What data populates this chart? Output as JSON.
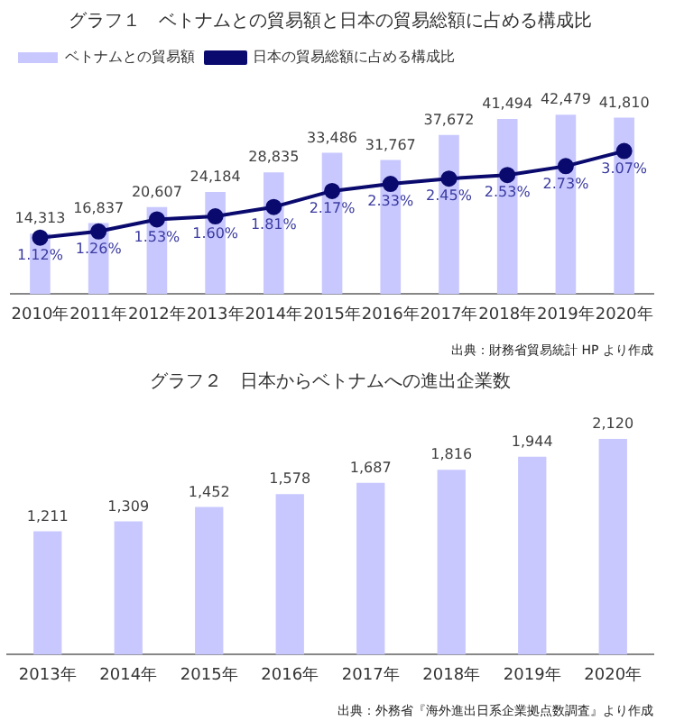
{
  "chart_data": [
    {
      "type": "bar",
      "title": "グラフ１　ベトナムとの貿易額と日本の貿易総額に占める構成比",
      "categories": [
        "2010年",
        "2011年",
        "2012年",
        "2013年",
        "2014年",
        "2015年",
        "2016年",
        "2017年",
        "2018年",
        "2019年",
        "2020年"
      ],
      "series": [
        {
          "name": "ベトナムとの貿易額",
          "type": "bar",
          "color": "#c8c8ff",
          "values": [
            14313,
            16837,
            20607,
            24184,
            28835,
            33486,
            31767,
            37672,
            41494,
            42479,
            41810
          ],
          "value_labels": [
            "14,313",
            "16,837",
            "20,607",
            "24,184",
            "28,835",
            "33,486",
            "31,767",
            "37,672",
            "41,494",
            "42,479",
            "41,810"
          ]
        },
        {
          "name": "日本の貿易総額に占める構成比",
          "type": "line",
          "axis": "y2",
          "color": "#0a0a6e",
          "values": [
            1.12,
            1.26,
            1.53,
            1.6,
            1.81,
            2.17,
            2.33,
            2.45,
            2.53,
            2.73,
            3.07
          ],
          "value_labels": [
            "1.12%",
            "1.26%",
            "1.53%",
            "1.60%",
            "1.81%",
            "2.17%",
            "2.33%",
            "2.45%",
            "2.53%",
            "2.73%",
            "3.07%"
          ]
        }
      ],
      "data_labels": true,
      "legend": "top left",
      "marker": "circle",
      "grid": false,
      "tick_labels": "x",
      "annotations": [
        "出典：財務省貿易統計 HP より作成"
      ]
    },
    {
      "type": "bar",
      "title": "グラフ２　日本からベトナムへの進出企業数",
      "categories": [
        "2013年",
        "2014年",
        "2015年",
        "2016年",
        "2017年",
        "2018年",
        "2019年",
        "2020年"
      ],
      "series": [
        {
          "color": "#c8c8ff",
          "values": [
            1211,
            1309,
            1452,
            1578,
            1687,
            1816,
            1944,
            2120
          ],
          "value_labels": [
            "1,211",
            "1,309",
            "1,452",
            "1,578",
            "1,687",
            "1,816",
            "1,944",
            "2,120"
          ]
        }
      ],
      "data_labels": true,
      "grid": false,
      "tick_labels": "x",
      "annotations": [
        "出典：外務省『海外進出日系企業拠点数調査』より作成"
      ]
    }
  ]
}
